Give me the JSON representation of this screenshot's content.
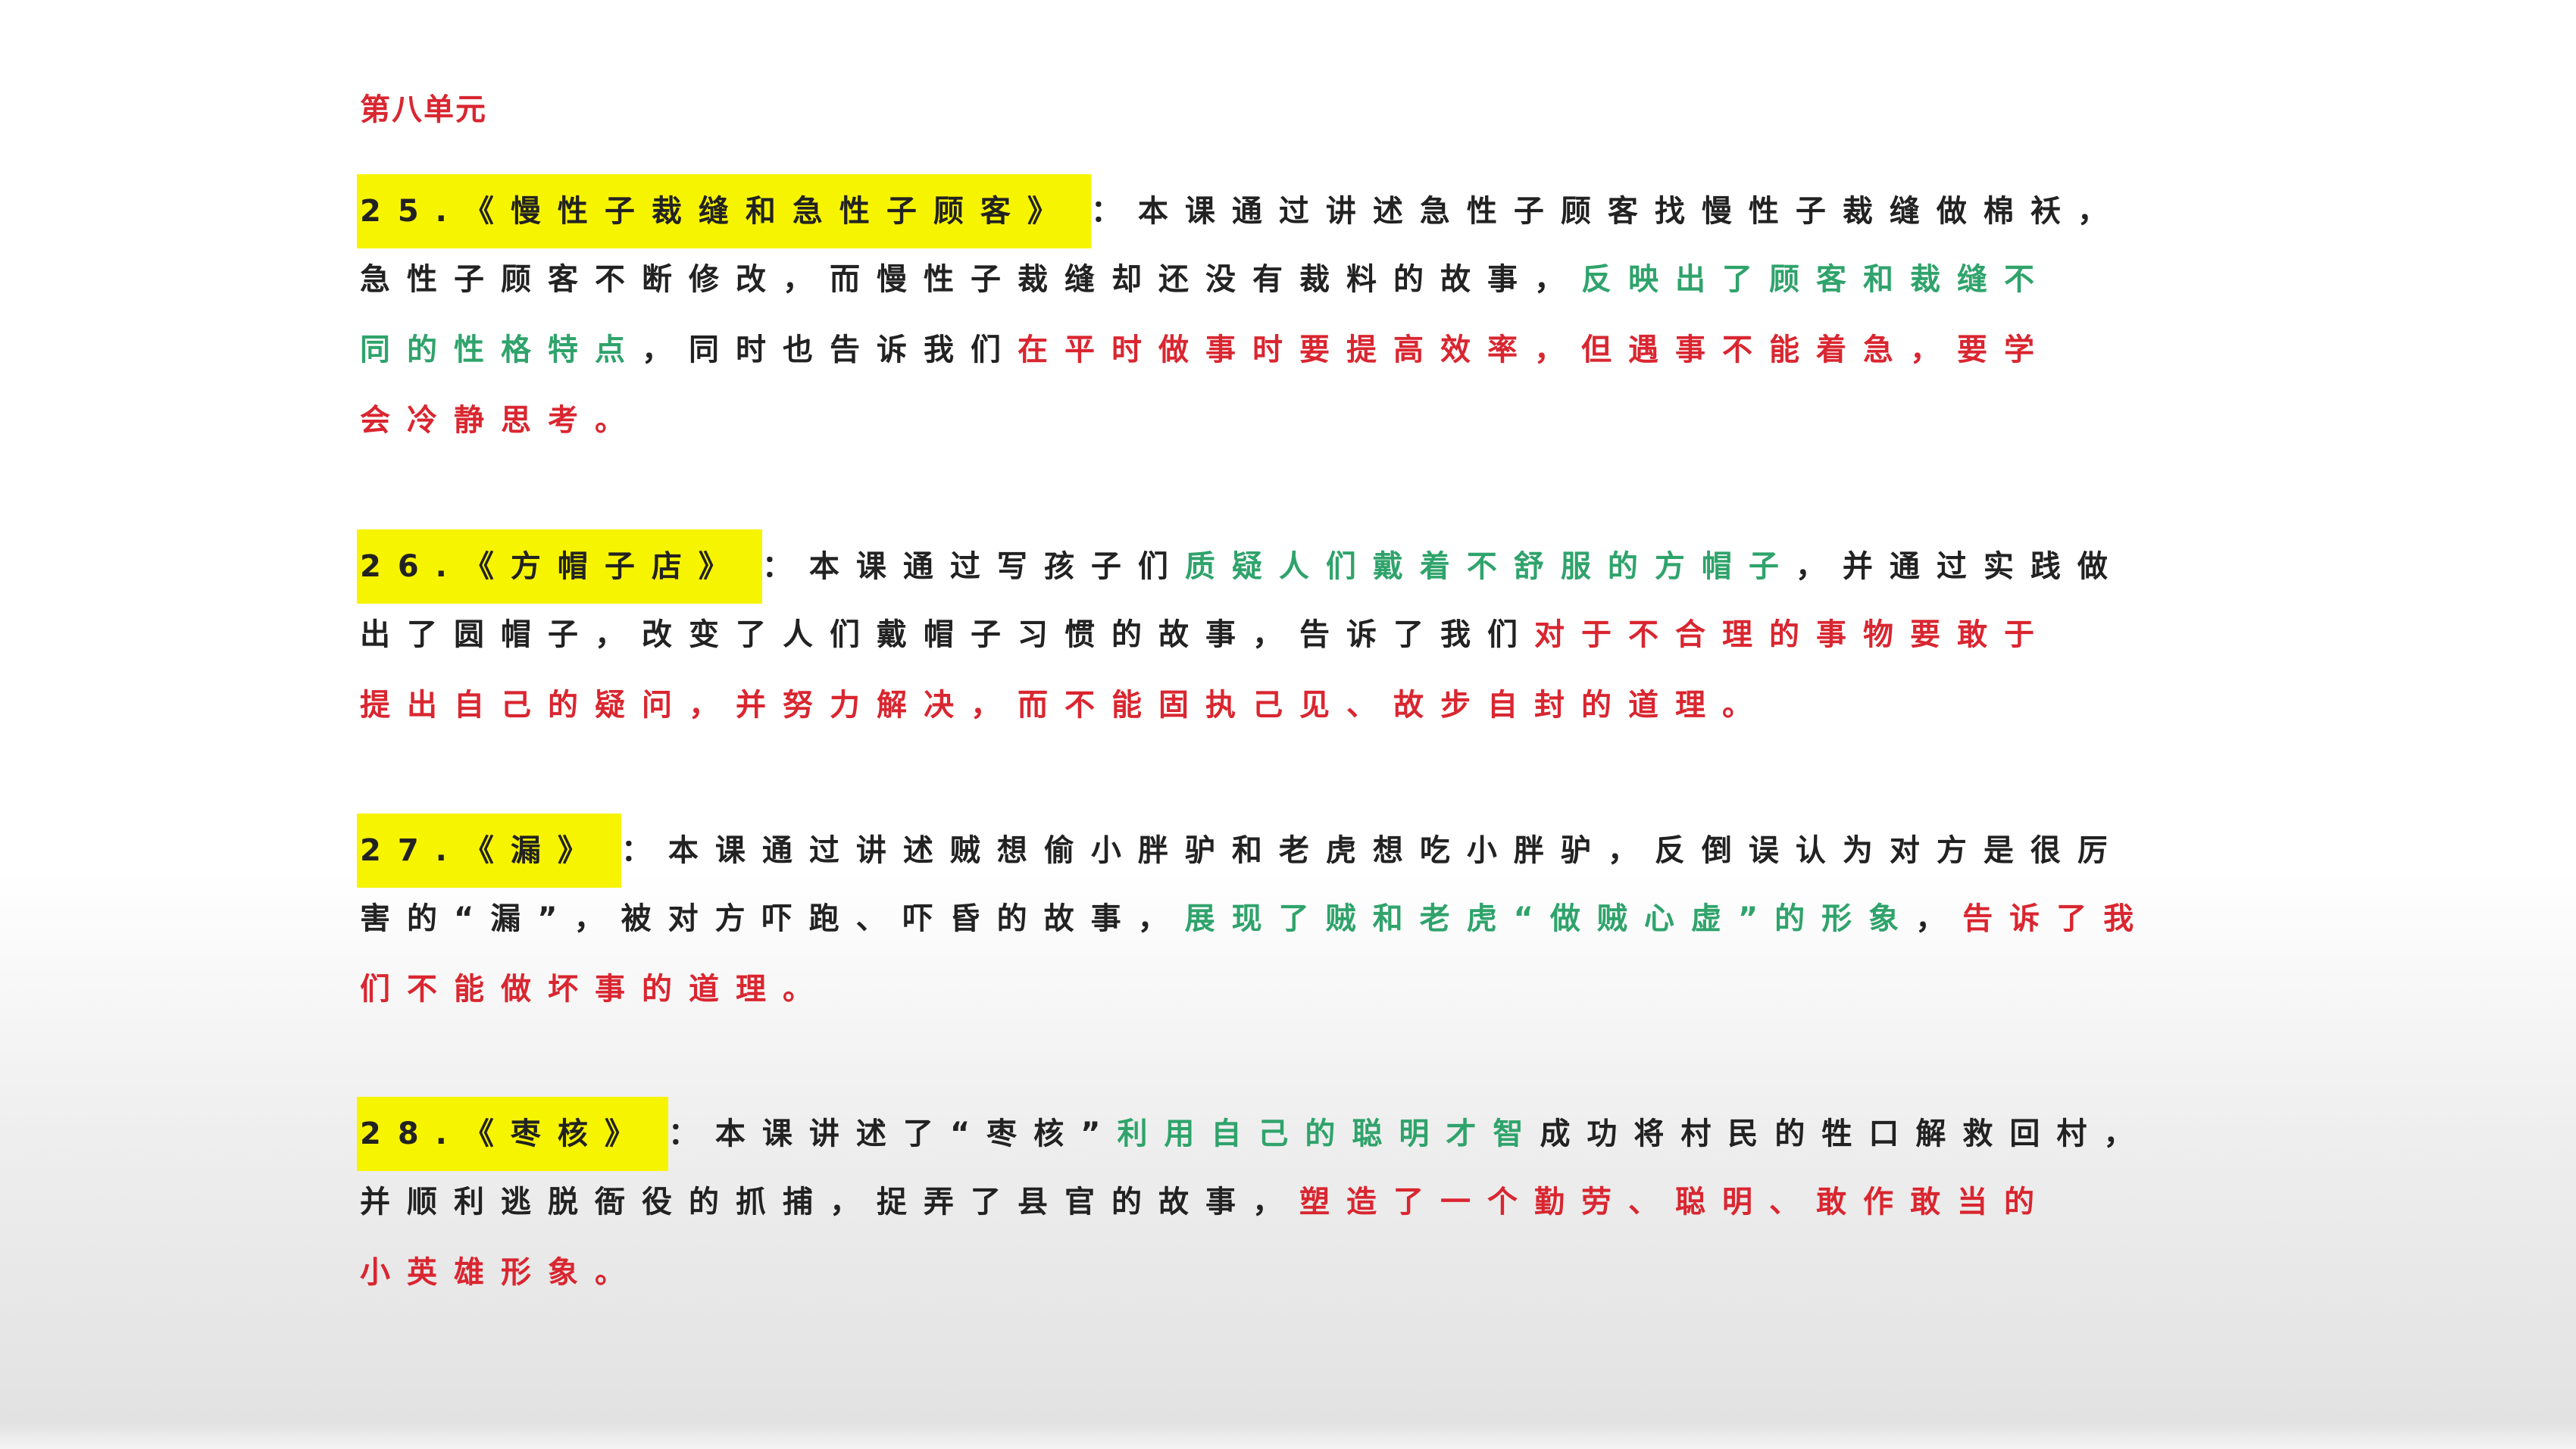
{
  "colors": {
    "black": "#222222",
    "green": "#2fa36b",
    "red": "#d92630",
    "highlight": "#f7f400"
  },
  "heading": {
    "text": "第八单元",
    "color": "#d92630"
  },
  "items": [
    {
      "lines": [
        [
          {
            "text": "25.《慢性子裁缝和急性子顾客》",
            "color": "black",
            "highlight": true
          },
          {
            "text": "：本课通过讲述急性子顾客找慢性子裁缝做棉袄，",
            "color": "black"
          }
        ],
        [
          {
            "text": "急性子顾客不断修改，而慢性子裁缝却还没有裁料的故事，",
            "color": "black"
          },
          {
            "text": "反映出了顾客和裁缝不",
            "color": "green"
          }
        ],
        [
          {
            "text": "同的性格特点",
            "color": "green"
          },
          {
            "text": "，同时也告诉我们",
            "color": "black"
          },
          {
            "text": "在平时做事时要提高效率，但遇事不能着急，要学",
            "color": "red"
          }
        ],
        [
          {
            "text": "会冷静思考。",
            "color": "red"
          }
        ]
      ]
    },
    {
      "lines": [
        [
          {
            "text": "26.《方帽子店》",
            "color": "black",
            "highlight": true
          },
          {
            "text": "：本课通过写孩子们",
            "color": "black"
          },
          {
            "text": "质疑人们戴着不舒服的方帽子",
            "color": "green"
          },
          {
            "text": "，并通过实践做",
            "color": "black"
          }
        ],
        [
          {
            "text": "出了圆帽子，改变了人们戴帽子习惯的故事，告诉了我们",
            "color": "black"
          },
          {
            "text": "对于不合理的事物要敢于",
            "color": "red"
          }
        ],
        [
          {
            "text": "提出自己的疑问，并努力解决，而不能固执己见、故步自封的道理。",
            "color": "red"
          }
        ]
      ]
    },
    {
      "lines": [
        [
          {
            "text": "27.《漏》",
            "color": "black",
            "highlight": true
          },
          {
            "text": "：本课通过讲述贼想偷小胖驴和老虎想吃小胖驴，反倒误认为对方是很厉",
            "color": "black"
          }
        ],
        [
          {
            "text": "害的“漏”，被对方吓跑、吓昏的故事，",
            "color": "black"
          },
          {
            "text": "展现了贼和老虎“做贼心虚”的形象",
            "color": "green"
          },
          {
            "text": "，",
            "color": "black"
          },
          {
            "text": "告诉了我",
            "color": "red"
          }
        ],
        [
          {
            "text": "们不能做坏事的道理。",
            "color": "red"
          }
        ]
      ]
    },
    {
      "lines": [
        [
          {
            "text": "28.《枣核》",
            "color": "black",
            "highlight": true
          },
          {
            "text": "：本课讲述了“枣核”",
            "color": "black"
          },
          {
            "text": "利用自己的聪明才智",
            "color": "green"
          },
          {
            "text": "成功将村民的牲口解救回村，",
            "color": "black"
          }
        ],
        [
          {
            "text": "并顺利逃脱衙役的抓捕，捉弄了县官的故事，",
            "color": "black"
          },
          {
            "text": "塑造了一个勤劳、聪明、敢作敢当的",
            "color": "red"
          }
        ],
        [
          {
            "text": "小英雄形象。",
            "color": "red"
          }
        ]
      ]
    }
  ]
}
